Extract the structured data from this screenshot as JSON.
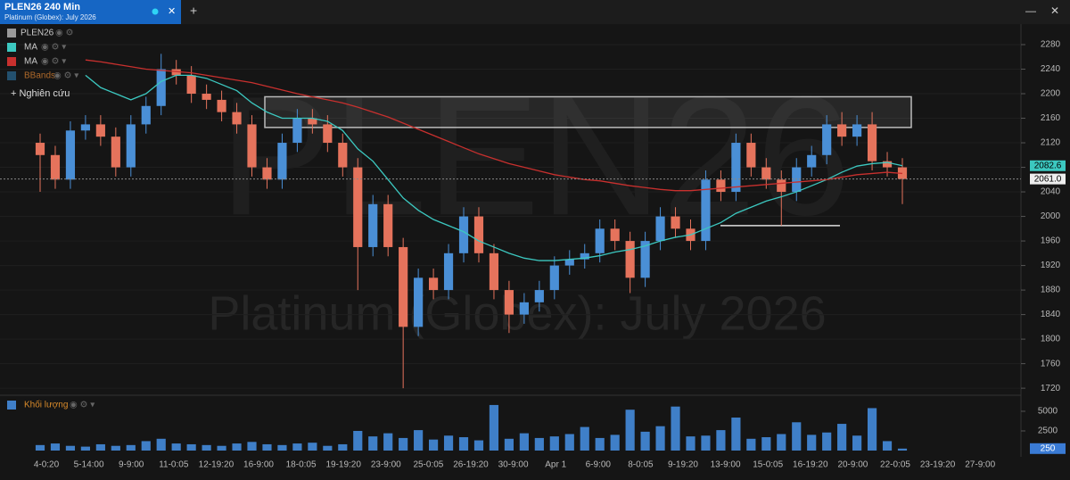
{
  "header": {
    "tab_title": "PLEN26 240 Min",
    "tab_subtitle": "Platinum (Globex): July 2026"
  },
  "legend": {
    "items": [
      "PLEN26",
      "MA",
      "MA",
      "BBands"
    ],
    "add_study": "+ Nghiên cứu",
    "volume": "Khối lượng"
  },
  "watermark": {
    "symbol": "PLEN26",
    "name": "Platinum (Globex): July 2026"
  },
  "chart_data": {
    "type": "candlestick",
    "open": [
      2120,
      2100,
      2060,
      2140,
      2150,
      2130,
      2080,
      2150,
      2180,
      2240,
      2230,
      2200,
      2190,
      2170,
      2150,
      2080,
      2060,
      2120,
      2160,
      2150,
      2120,
      2080,
      1950,
      2020,
      1950,
      1820,
      1900,
      1880,
      1940,
      2000,
      1940,
      1880,
      1840,
      1860,
      1880,
      1920,
      1930,
      1940,
      1980,
      1960,
      1900,
      1960,
      2000,
      1980,
      1960,
      2060,
      2040,
      2120,
      2080,
      2060,
      2040,
      2080,
      2100,
      2150,
      2130,
      2150,
      2090,
      2080
    ],
    "high": [
      2135,
      2115,
      2155,
      2165,
      2165,
      2145,
      2165,
      2195,
      2265,
      2255,
      2245,
      2215,
      2205,
      2185,
      2165,
      2095,
      2135,
      2175,
      2175,
      2165,
      2135,
      2095,
      2035,
      2035,
      1965,
      1915,
      1915,
      1955,
      2015,
      2015,
      1955,
      1895,
      1875,
      1895,
      1935,
      1945,
      1955,
      1995,
      1995,
      1975,
      1975,
      2015,
      2015,
      1995,
      2075,
      2075,
      2135,
      2135,
      2095,
      2075,
      2095,
      2115,
      2165,
      2170,
      2165,
      2170,
      2105,
      2095
    ],
    "low": [
      2040,
      2045,
      2045,
      2125,
      2115,
      2065,
      2065,
      2135,
      2165,
      2215,
      2185,
      2175,
      2155,
      2135,
      2065,
      2045,
      2045,
      2105,
      2135,
      2105,
      2065,
      1880,
      1935,
      1935,
      1720,
      1805,
      1865,
      1865,
      1925,
      1925,
      1865,
      1810,
      1825,
      1845,
      1865,
      1905,
      1915,
      1925,
      1945,
      1875,
      1885,
      1945,
      1965,
      1945,
      1945,
      2025,
      2025,
      2065,
      2045,
      1985,
      2025,
      2065,
      2085,
      2115,
      2115,
      2075,
      2065,
      2020
    ],
    "close": [
      2100,
      2060,
      2140,
      2150,
      2130,
      2080,
      2150,
      2180,
      2240,
      2230,
      2200,
      2190,
      2170,
      2150,
      2080,
      2060,
      2120,
      2160,
      2150,
      2120,
      2080,
      1950,
      2020,
      1950,
      1820,
      1900,
      1880,
      1940,
      2000,
      1940,
      1880,
      1840,
      1860,
      1880,
      1920,
      1930,
      1940,
      1980,
      1960,
      1900,
      1960,
      2000,
      1980,
      1960,
      2060,
      2040,
      2120,
      2080,
      2060,
      2040,
      2080,
      2100,
      2150,
      2130,
      2150,
      2090,
      2080,
      2061
    ],
    "up_color": "#4a8fd6",
    "down_color": "#e5735c",
    "series": [
      {
        "name": "MA",
        "color": "#3cc8c0",
        "values": [
          null,
          null,
          null,
          2230,
          2210,
          2200,
          2190,
          2200,
          2220,
          2230,
          2230,
          2225,
          2215,
          2205,
          2185,
          2170,
          2160,
          2160,
          2160,
          2155,
          2140,
          2110,
          2090,
          2060,
          2030,
          2010,
          1995,
          1985,
          1975,
          1960,
          1950,
          1940,
          1932,
          1928,
          1928,
          1930,
          1932,
          1936,
          1942,
          1946,
          1952,
          1960,
          1966,
          1970,
          1980,
          1990,
          2005,
          2015,
          2025,
          2032,
          2040,
          2050,
          2060,
          2072,
          2082,
          2086,
          2088,
          2082.6
        ]
      },
      {
        "name": "MA",
        "color": "#c8302e",
        "values": [
          null,
          null,
          null,
          2255,
          2252,
          2248,
          2244,
          2240,
          2238,
          2236,
          2234,
          2230,
          2226,
          2222,
          2218,
          2212,
          2206,
          2200,
          2195,
          2190,
          2185,
          2178,
          2170,
          2162,
          2152,
          2142,
          2132,
          2122,
          2112,
          2102,
          2094,
          2086,
          2080,
          2074,
          2068,
          2064,
          2060,
          2058,
          2054,
          2050,
          2047,
          2044,
          2042,
          2042,
          2044,
          2046,
          2048,
          2050,
          2052,
          2054,
          2056,
          2058,
          2060,
          2064,
          2068,
          2070,
          2072,
          2070
        ]
      }
    ],
    "last_price": {
      "value": 2061,
      "label": "2061.0"
    },
    "zone": {
      "top": 2195,
      "bottom": 2145
    },
    "level": 1985,
    "ylim": [
      1710,
      2312
    ],
    "yticks": [
      2280,
      2240,
      2200,
      2160,
      2120,
      2080,
      2040,
      2000,
      1960,
      1920,
      1880,
      1840,
      1800,
      1760,
      1720
    ],
    "volume": {
      "values": [
        700,
        900,
        600,
        500,
        800,
        600,
        700,
        1200,
        1500,
        900,
        800,
        700,
        600,
        900,
        1100,
        800,
        700,
        900,
        1000,
        600,
        800,
        2500,
        1800,
        2200,
        1600,
        2600,
        1400,
        1900,
        1700,
        1300,
        5800,
        1500,
        2200,
        1600,
        1800,
        2100,
        3000,
        1600,
        2000,
        5200,
        2400,
        3100,
        5600,
        1800,
        1900,
        2600,
        4200,
        1500,
        1700,
        2100,
        3600,
        2000,
        2300,
        3400,
        1900,
        5400,
        1200,
        250
      ],
      "color": "#3f7fc8",
      "ylim": [
        0,
        6700
      ],
      "yticks": [
        5000,
        2500
      ]
    },
    "xlabels": [
      "4-0:20",
      "5-14:00",
      "9-9:00",
      "11-0:05",
      "12-19:20",
      "16-9:00",
      "18-0:05",
      "19-19:20",
      "23-9:00",
      "25-0:05",
      "26-19:20",
      "30-9:00",
      "Apr 1",
      "6-9:00",
      "8-0:05",
      "9-19:20",
      "13-9:00",
      "15-0:05",
      "16-19:20",
      "20-9:00",
      "22-0:05",
      "23-19:20",
      "27-9:00"
    ]
  }
}
